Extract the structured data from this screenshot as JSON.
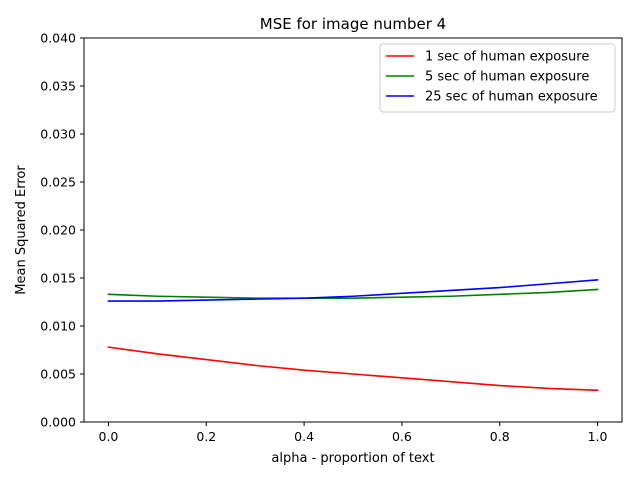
{
  "chart_data": {
    "type": "line",
    "title": "MSE for image number 4",
    "xlabel": "alpha - proportion of text",
    "ylabel": "Mean Squared Error",
    "xlim": [
      -0.05,
      1.05
    ],
    "ylim": [
      0.0,
      0.04
    ],
    "xticks": [
      0.0,
      0.2,
      0.4,
      0.6,
      0.8,
      1.0
    ],
    "xtick_labels": [
      "0.0",
      "0.2",
      "0.4",
      "0.6",
      "0.8",
      "1.0"
    ],
    "yticks": [
      0.0,
      0.005,
      0.01,
      0.015,
      0.02,
      0.025,
      0.03,
      0.035,
      0.04
    ],
    "ytick_labels": [
      "0.000",
      "0.005",
      "0.010",
      "0.015",
      "0.020",
      "0.025",
      "0.030",
      "0.035",
      "0.040"
    ],
    "grid": false,
    "legend_position": "top-right",
    "x": [
      0.0,
      0.1,
      0.2,
      0.3,
      0.4,
      0.5,
      0.6,
      0.7,
      0.8,
      0.9,
      1.0
    ],
    "series": [
      {
        "name": "1 sec of human exposure",
        "color": "#ff0000",
        "values": [
          0.0078,
          0.0071,
          0.0065,
          0.0059,
          0.0054,
          0.005,
          0.0046,
          0.0042,
          0.0038,
          0.0035,
          0.0033
        ]
      },
      {
        "name": "5 sec of human exposure",
        "color": "#008000",
        "values": [
          0.0133,
          0.0131,
          0.013,
          0.0129,
          0.0129,
          0.0129,
          0.013,
          0.0131,
          0.0133,
          0.0135,
          0.0138
        ]
      },
      {
        "name": "25 sec of human exposure",
        "color": "#0000ff",
        "values": [
          0.0126,
          0.0126,
          0.0127,
          0.0128,
          0.0129,
          0.0131,
          0.0134,
          0.0137,
          0.014,
          0.0144,
          0.0148
        ]
      }
    ]
  }
}
